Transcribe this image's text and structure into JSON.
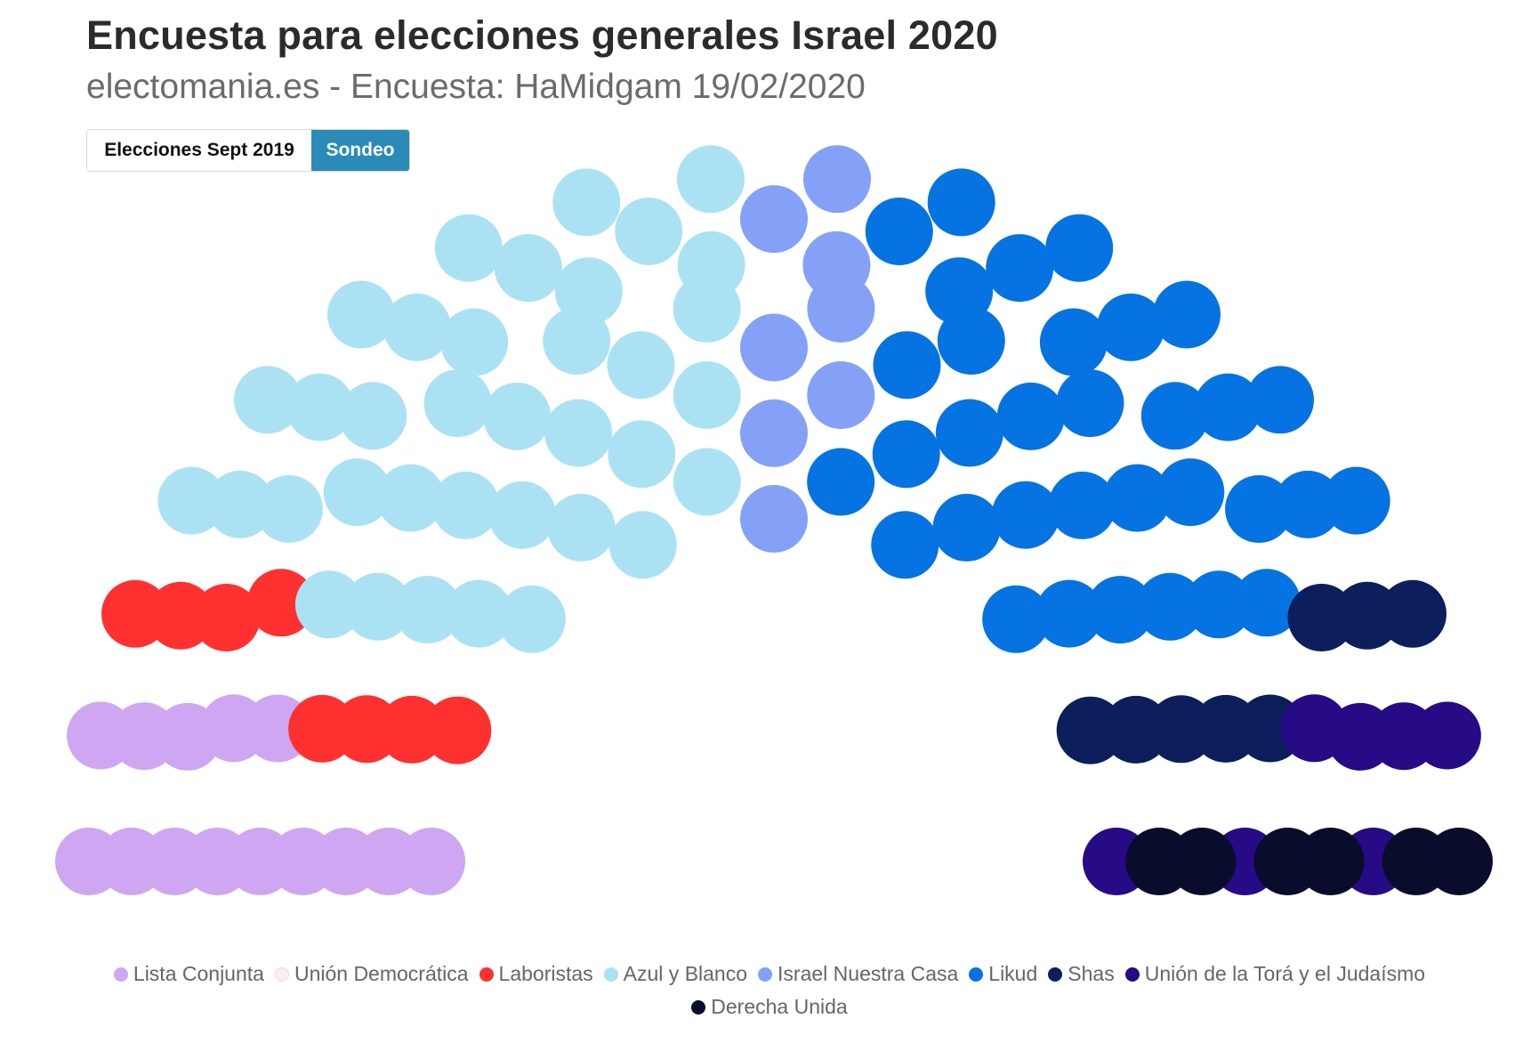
{
  "header": {
    "title": "Encuesta para elecciones generales Israel 2020",
    "subtitle": "electomania.es - Encuesta: HaMidgam 19/02/2020"
  },
  "toggle": {
    "options": [
      "Elecciones Sept 2019",
      "Sondeo"
    ],
    "selected": "Sondeo"
  },
  "chart_data": {
    "type": "parliament",
    "total_seats": 120,
    "series": [
      {
        "name": "Lista Conjunta",
        "seats": 14,
        "color": "#cfa6f2"
      },
      {
        "name": "Unión Democrática",
        "seats": 0,
        "color": "#fbeef0"
      },
      {
        "name": "Laboristas",
        "seats": 8,
        "color": "#ff3030"
      },
      {
        "name": "Azul y Blanco",
        "seats": 36,
        "color": "#abe2f3"
      },
      {
        "name": "Israel Nuestra Casa",
        "seats": 8,
        "color": "#85a1f7"
      },
      {
        "name": "Likud",
        "seats": 33,
        "color": "#0573e1"
      },
      {
        "name": "Shas",
        "seats": 8,
        "color": "#0c1e5c"
      },
      {
        "name": "Unión de la Torá y el Judaísmo",
        "seats": 7,
        "color": "#270a86"
      },
      {
        "name": "Derecha Unida",
        "seats": 6,
        "color": "#090c2b"
      }
    ],
    "legend_position": "bottom"
  }
}
